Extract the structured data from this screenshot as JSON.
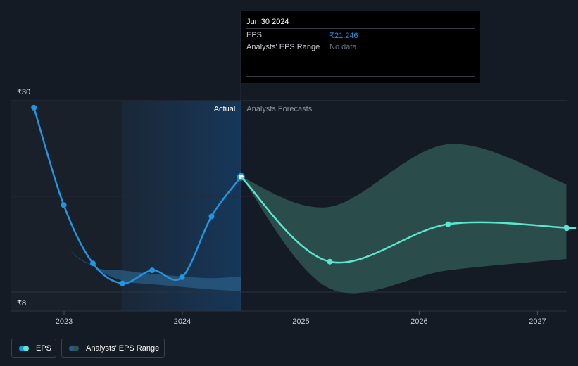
{
  "chart_data": {
    "type": "line",
    "title": "",
    "xlabel": "",
    "ylabel": "",
    "currency_symbol": "₹",
    "ylim": [
      8,
      30
    ],
    "y_tick_labels": [
      "₹30",
      "₹8"
    ],
    "x_tick_labels": [
      "2023",
      "2024",
      "2025",
      "2026",
      "2027"
    ],
    "region_labels": {
      "actual": "Actual",
      "forecast": "Analysts Forecasts"
    },
    "series": [
      {
        "name": "EPS",
        "color": "#2394df",
        "points": [
          [
            "2022-09-30",
            29.2
          ],
          [
            "2022-12-31",
            18.0
          ],
          [
            "2023-03-31",
            11.3
          ],
          [
            "2023-06-30",
            9.0
          ],
          [
            "2023-09-30",
            10.5
          ],
          [
            "2023-12-31",
            9.7
          ],
          [
            "2024-03-31",
            16.7
          ],
          [
            "2024-06-30",
            21.246
          ]
        ]
      },
      {
        "name": "EPS (forecast)",
        "color": "#5ce5cf",
        "points": [
          [
            "2024-06-30",
            21.246
          ],
          [
            "2025-03-31",
            11.5
          ],
          [
            "2026-03-31",
            15.8
          ],
          [
            "2027-03-31",
            15.4
          ]
        ]
      }
    ],
    "ranges": [
      {
        "name": "Analysts' EPS Range",
        "color": "#2a5d86",
        "region": "actual",
        "points": [
          [
            "2022-09-30",
            29.2,
            29.2
          ],
          [
            "2022-12-31",
            14.5,
            14.5
          ],
          [
            "2023-03-31",
            11.0,
            11.0
          ],
          [
            "2023-06-30",
            10.5,
            9.3
          ],
          [
            "2023-09-30",
            10.1,
            8.9
          ],
          [
            "2023-12-31",
            9.8,
            8.6
          ],
          [
            "2024-03-31",
            9.6,
            8.3
          ],
          [
            "2024-06-30",
            9.8,
            8.1
          ]
        ]
      },
      {
        "name": "Analysts' EPS Range (forecast)",
        "color": "#2e5552",
        "region": "forecast",
        "points": [
          [
            "2024-06-30",
            21.246,
            21.246
          ],
          [
            "2025-03-31",
            17.8,
            8.4
          ],
          [
            "2026-03-31",
            25.0,
            10.5
          ],
          [
            "2027-03-31",
            20.4,
            11.8
          ]
        ]
      }
    ]
  },
  "tooltip": {
    "date": "Jun 30 2024",
    "eps_label": "EPS",
    "eps_value": "₹21.246",
    "range_label": "Analysts' EPS Range",
    "range_value": "No data"
  },
  "legend": [
    {
      "label": "EPS",
      "colors": [
        "#2394df",
        "#5ce5cf"
      ]
    },
    {
      "label": "Analysts' EPS Range",
      "colors": [
        "#2a5d86",
        "#2e5552"
      ]
    }
  ]
}
